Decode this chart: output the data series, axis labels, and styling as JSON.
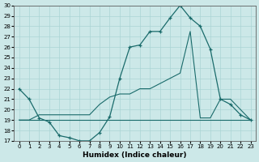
{
  "xlabel": "Humidex (Indice chaleur)",
  "xlim": [
    -0.5,
    23.5
  ],
  "ylim": [
    17,
    30
  ],
  "yticks": [
    17,
    18,
    19,
    20,
    21,
    22,
    23,
    24,
    25,
    26,
    27,
    28,
    29,
    30
  ],
  "xtick_labels": [
    "0",
    "1",
    "2",
    "3",
    "4",
    "5",
    "6",
    "7",
    "8",
    "9",
    "10",
    "11",
    "12",
    "13",
    "14",
    "15",
    "16",
    "17",
    "18",
    "19",
    "20",
    "21",
    "22",
    "23"
  ],
  "bg_color": "#cce8e8",
  "grid_color": "#aad4d4",
  "line_color": "#1a6b6b",
  "line1_x": [
    0,
    1,
    2,
    3,
    4,
    5,
    6,
    7,
    8,
    9,
    10,
    11,
    12,
    13,
    14,
    15,
    16,
    17,
    18,
    19,
    20,
    21,
    22,
    23
  ],
  "line1_y": [
    22.0,
    21.0,
    19.2,
    18.8,
    17.5,
    17.3,
    17.0,
    17.0,
    17.8,
    19.3,
    23.0,
    26.0,
    26.2,
    27.5,
    27.5,
    28.8,
    30.0,
    28.8,
    28.0,
    25.8,
    21.0,
    20.5,
    19.5,
    19.0
  ],
  "line2_x": [
    0,
    8,
    18,
    23
  ],
  "line2_y": [
    19.0,
    19.0,
    19.0,
    19.0
  ],
  "line3_x": [
    0,
    1,
    2,
    3,
    4,
    5,
    6,
    7,
    8,
    9,
    10,
    11,
    12,
    13,
    14,
    15,
    16,
    17,
    18,
    19,
    20,
    21,
    22,
    23
  ],
  "line3_y": [
    19.0,
    19.0,
    19.5,
    19.5,
    19.5,
    19.5,
    19.5,
    19.5,
    20.5,
    21.2,
    21.5,
    21.5,
    22.0,
    22.0,
    22.5,
    23.0,
    23.5,
    27.5,
    19.2,
    19.2,
    21.0,
    21.0,
    20.0,
    19.0
  ]
}
